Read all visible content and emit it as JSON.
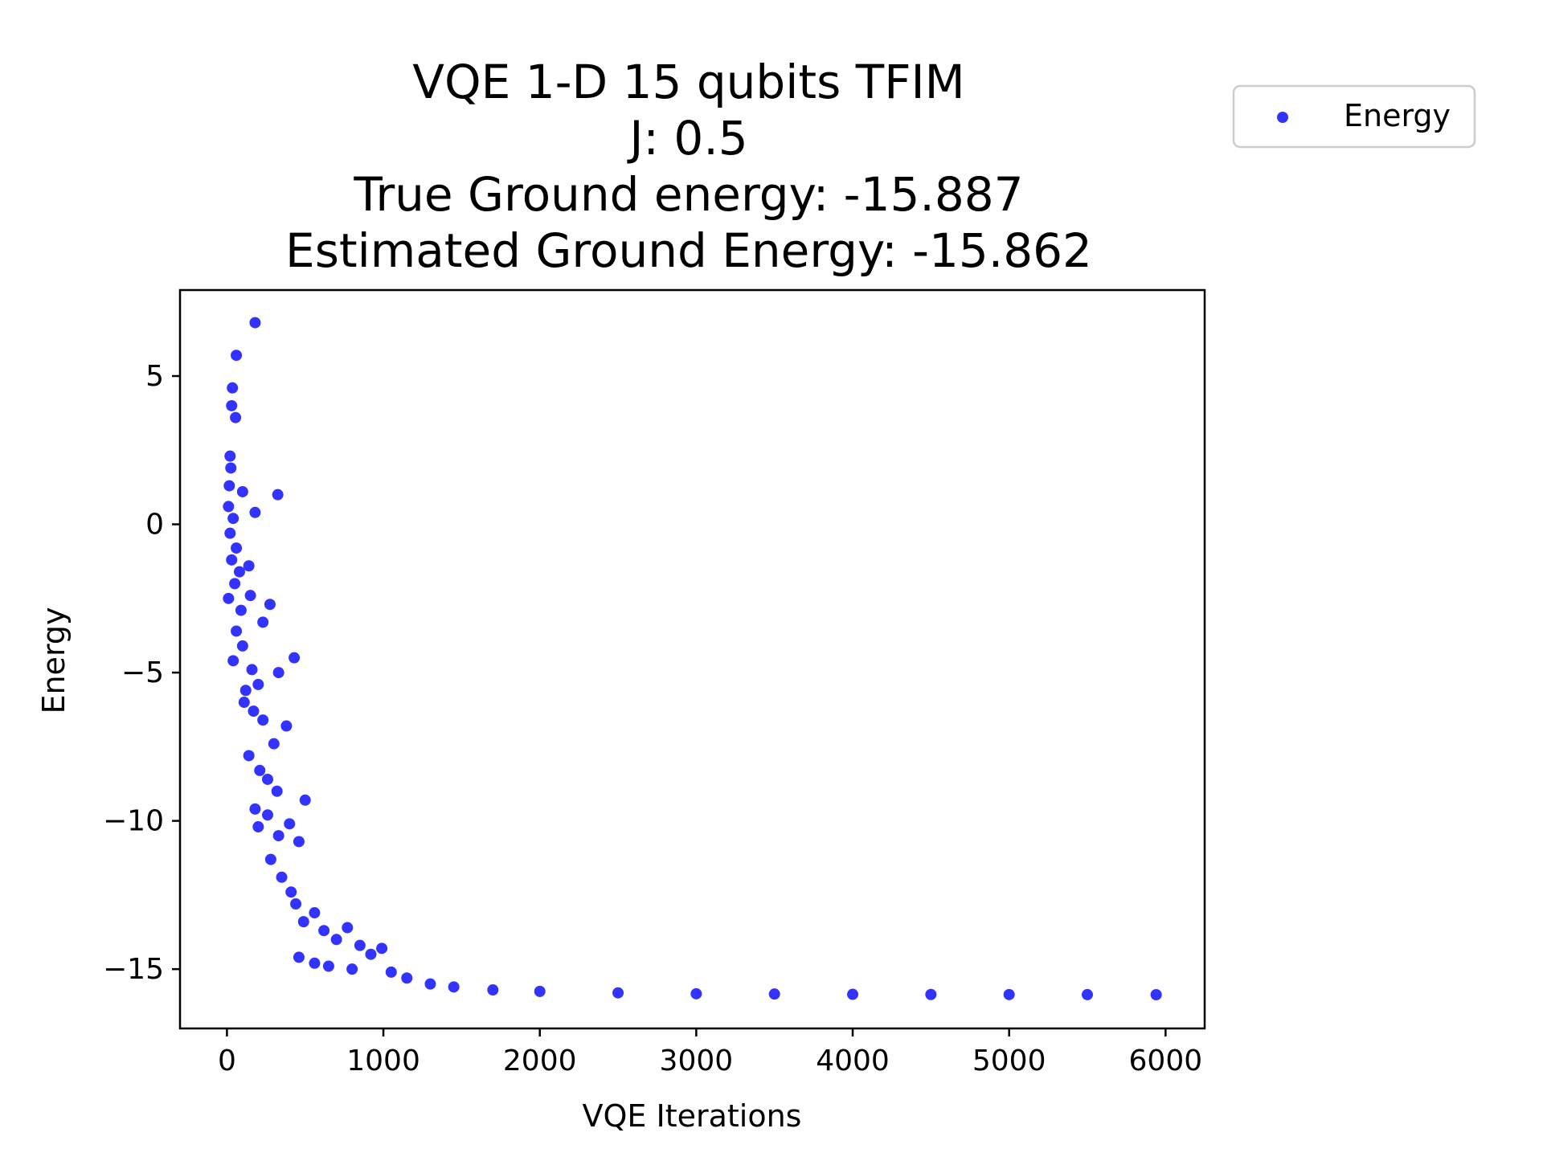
{
  "chart_data": {
    "type": "scatter",
    "title": [
      "VQE 1-D 15 qubits TFIM",
      "J: 0.5",
      "True Ground energy: -15.887",
      "Estimated Ground Energy: -15.862"
    ],
    "xlabel": "VQE Iterations",
    "ylabel": "Energy",
    "xlim": [
      -300,
      6250
    ],
    "ylim": [
      -17.0,
      7.9
    ],
    "xticks": [
      0,
      1000,
      2000,
      3000,
      4000,
      5000,
      6000
    ],
    "xtick_labels": [
      "0",
      "1000",
      "2000",
      "3000",
      "4000",
      "5000",
      "6000"
    ],
    "yticks": [
      5,
      0,
      -5,
      -10,
      -15
    ],
    "ytick_labels": [
      "5",
      "0",
      "−5",
      "−10",
      "−15"
    ],
    "grid": false,
    "legend": {
      "placement": "outside top-right",
      "entries": [
        "Energy"
      ]
    },
    "series": [
      {
        "name": "Energy",
        "color": "#0000ff",
        "points": [
          [
            180,
            6.8
          ],
          [
            60,
            5.7
          ],
          [
            35,
            4.6
          ],
          [
            30,
            4.0
          ],
          [
            55,
            3.6
          ],
          [
            20,
            2.3
          ],
          [
            25,
            1.9
          ],
          [
            325,
            1.0
          ],
          [
            100,
            1.1
          ],
          [
            180,
            0.4
          ],
          [
            15,
            1.3
          ],
          [
            10,
            0.6
          ],
          [
            40,
            0.2
          ],
          [
            20,
            -0.3
          ],
          [
            60,
            -0.8
          ],
          [
            30,
            -1.2
          ],
          [
            80,
            -1.6
          ],
          [
            50,
            -2.0
          ],
          [
            10,
            -2.5
          ],
          [
            90,
            -2.9
          ],
          [
            140,
            -1.4
          ],
          [
            150,
            -2.4
          ],
          [
            275,
            -2.7
          ],
          [
            230,
            -3.3
          ],
          [
            60,
            -3.6
          ],
          [
            100,
            -4.1
          ],
          [
            40,
            -4.6
          ],
          [
            430,
            -4.5
          ],
          [
            160,
            -4.9
          ],
          [
            330,
            -5.0
          ],
          [
            120,
            -5.6
          ],
          [
            200,
            -5.4
          ],
          [
            110,
            -6.0
          ],
          [
            170,
            -6.3
          ],
          [
            230,
            -6.6
          ],
          [
            380,
            -6.8
          ],
          [
            300,
            -7.4
          ],
          [
            140,
            -7.8
          ],
          [
            210,
            -8.3
          ],
          [
            260,
            -8.6
          ],
          [
            320,
            -9.0
          ],
          [
            180,
            -9.6
          ],
          [
            500,
            -9.3
          ],
          [
            260,
            -9.8
          ],
          [
            400,
            -10.1
          ],
          [
            200,
            -10.2
          ],
          [
            330,
            -10.5
          ],
          [
            460,
            -10.7
          ],
          [
            280,
            -11.3
          ],
          [
            350,
            -11.9
          ],
          [
            410,
            -12.4
          ],
          [
            440,
            -12.8
          ],
          [
            490,
            -13.4
          ],
          [
            560,
            -13.1
          ],
          [
            620,
            -13.7
          ],
          [
            700,
            -14.0
          ],
          [
            770,
            -13.6
          ],
          [
            850,
            -14.2
          ],
          [
            920,
            -14.5
          ],
          [
            990,
            -14.3
          ],
          [
            460,
            -14.6
          ],
          [
            560,
            -14.8
          ],
          [
            650,
            -14.9
          ],
          [
            800,
            -15.0
          ],
          [
            1050,
            -15.1
          ],
          [
            1150,
            -15.3
          ],
          [
            1300,
            -15.5
          ],
          [
            1450,
            -15.6
          ],
          [
            1700,
            -15.7
          ],
          [
            2000,
            -15.75
          ],
          [
            2500,
            -15.8
          ],
          [
            3000,
            -15.83
          ],
          [
            3500,
            -15.84
          ],
          [
            4000,
            -15.85
          ],
          [
            4500,
            -15.855
          ],
          [
            5000,
            -15.858
          ],
          [
            5500,
            -15.86
          ],
          [
            5940,
            -15.862
          ]
        ]
      }
    ]
  }
}
